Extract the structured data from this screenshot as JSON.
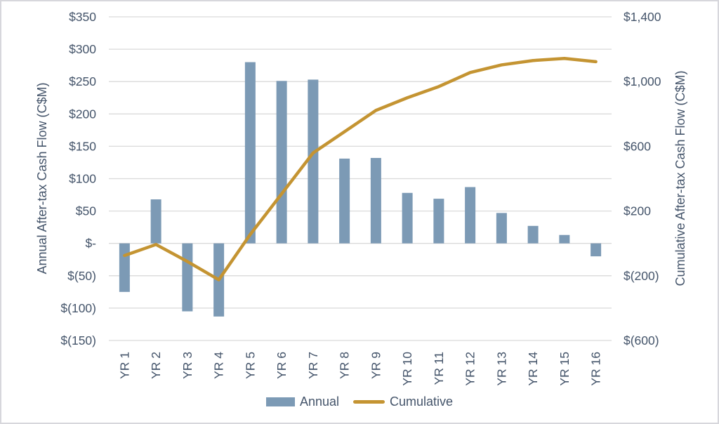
{
  "chart_data": {
    "type": "combo-bar-line",
    "categories": [
      "YR 1",
      "YR 2",
      "YR 3",
      "YR 4",
      "YR 5",
      "YR 6",
      "YR 7",
      "YR 8",
      "YR 9",
      "YR 10",
      "YR 11",
      "YR 12",
      "YR 13",
      "YR 14",
      "YR 15",
      "YR 16"
    ],
    "series": [
      {
        "name": "Annual",
        "type": "bar",
        "axis": "left",
        "color": "#7C9AB5",
        "values": [
          -75,
          68,
          -105,
          -113,
          280,
          251,
          253,
          131,
          132,
          78,
          69,
          87,
          47,
          27,
          13,
          -20
        ]
      },
      {
        "name": "Cumulative",
        "type": "line",
        "axis": "right",
        "color": "#C49432",
        "values": [
          -75,
          -7,
          -112,
          -225,
          55,
          306,
          559,
          690,
          822,
          900,
          969,
          1056,
          1103,
          1130,
          1143,
          1123
        ]
      }
    ],
    "left_axis": {
      "title": "Annual After-tax Cash Flow (C$M)",
      "min": -150,
      "max": 350,
      "ticks": [
        {
          "label": "$350",
          "value": 350
        },
        {
          "label": "$300",
          "value": 300
        },
        {
          "label": "$250",
          "value": 250
        },
        {
          "label": "$200",
          "value": 200
        },
        {
          "label": "$150",
          "value": 150
        },
        {
          "label": "$100",
          "value": 100
        },
        {
          "label": "$50",
          "value": 50
        },
        {
          "label": "$-",
          "value": 0
        },
        {
          "label": "$(50)",
          "value": -50
        },
        {
          "label": "$(100)",
          "value": -100
        },
        {
          "label": "$(150)",
          "value": -150
        }
      ]
    },
    "right_axis": {
      "title": "Cumulative After-tax Cash Flow (C$M)",
      "min": -600,
      "max": 1400,
      "ticks": [
        {
          "label": "$1,400",
          "value": 1400
        },
        {
          "label": "$1,000",
          "value": 1000
        },
        {
          "label": "$600",
          "value": 600
        },
        {
          "label": "$200",
          "value": 200
        },
        {
          "label": "$(200)",
          "value": -200
        },
        {
          "label": "$(600)",
          "value": -600
        }
      ]
    },
    "legend": [
      "Annual",
      "Cumulative"
    ],
    "legend_position": "bottom",
    "grid": true,
    "colors": {
      "text": "#44546A",
      "gridline": "#DADADA",
      "background": "#FFFFFF",
      "border": "#D7D7DC"
    }
  }
}
